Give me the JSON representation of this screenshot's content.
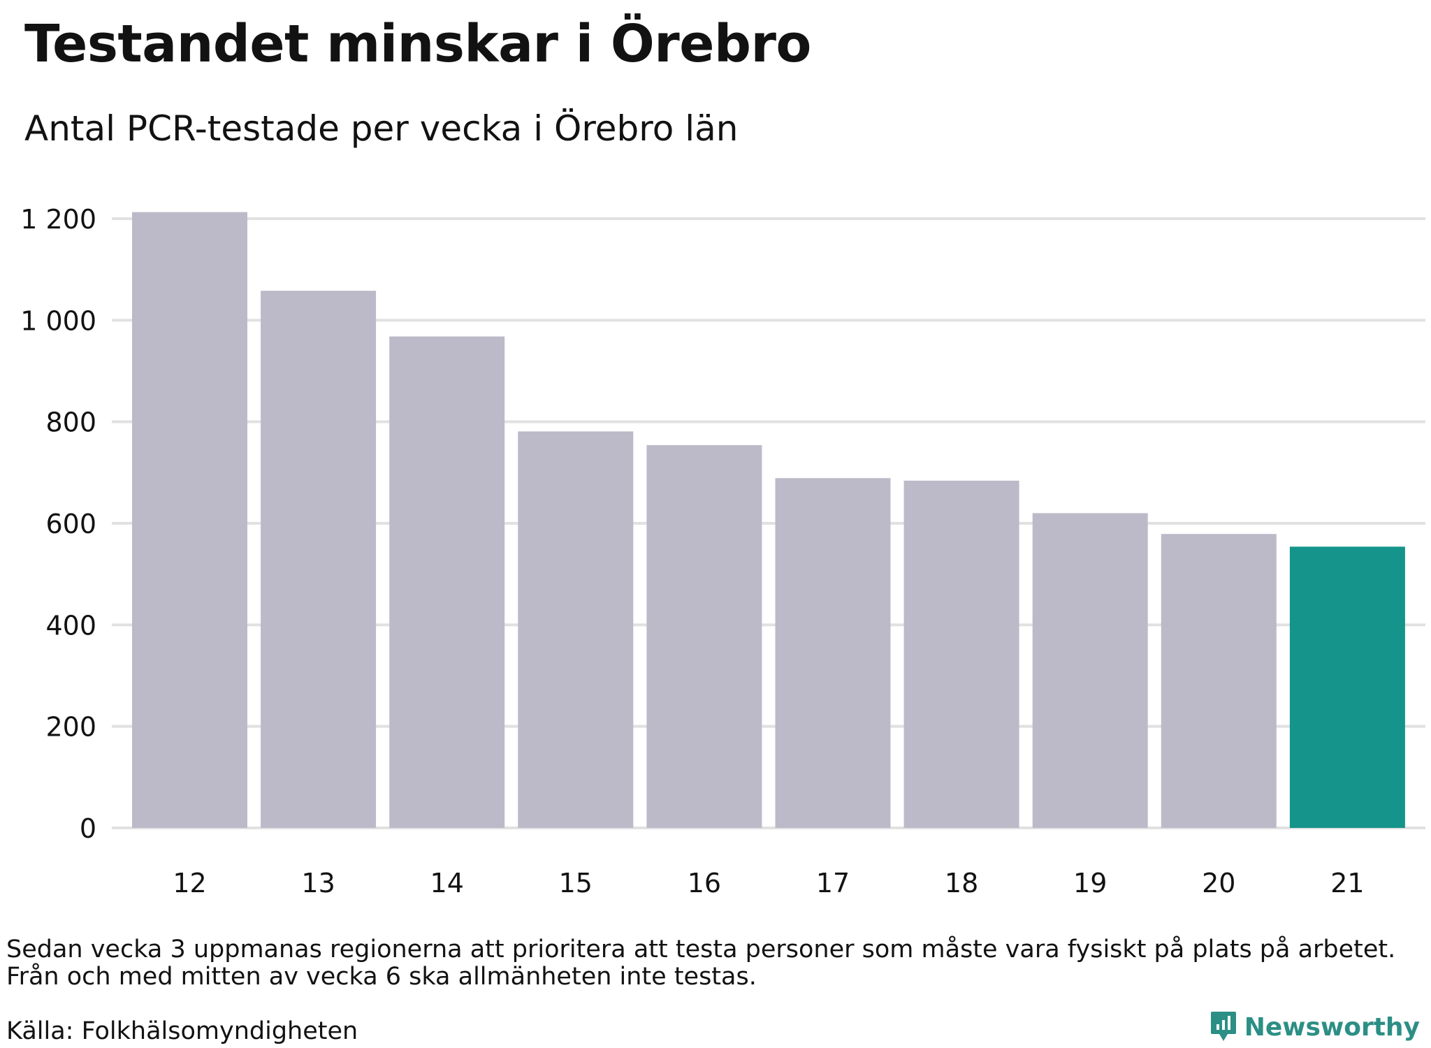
{
  "header": {
    "title": "Testandet minskar i Örebro",
    "subtitle": "Antal PCR-testade per vecka i Örebro län"
  },
  "footer": {
    "note_line1": "Sedan vecka 3 uppmanas regionerna att prioritera att testa personer som måste vara fysiskt på plats på arbetet.",
    "note_line2": "Från och med mitten av vecka 6 ska allmänheten inte testas.",
    "source": "Källa: Folkhälsomyndigheten",
    "brand": "Newsworthy"
  },
  "colors": {
    "bar": "#bcbac8",
    "highlight": "#14948a",
    "grid": "#e1e1e1",
    "brand": "#2c8f85"
  },
  "chart_data": {
    "type": "bar",
    "categories": [
      "12",
      "13",
      "14",
      "15",
      "16",
      "17",
      "18",
      "19",
      "20",
      "21"
    ],
    "values": [
      1213,
      1058,
      968,
      781,
      754,
      689,
      684,
      620,
      579,
      554
    ],
    "highlight_index": 9,
    "xlabel": "",
    "ylabel": "",
    "ylim": [
      0,
      1200
    ],
    "yticks": [
      0,
      200,
      400,
      600,
      800,
      1000,
      1200
    ],
    "ytick_labels": [
      "0",
      "200",
      "400",
      "600",
      "800",
      "1 000",
      "1 200"
    ],
    "grid": true
  }
}
